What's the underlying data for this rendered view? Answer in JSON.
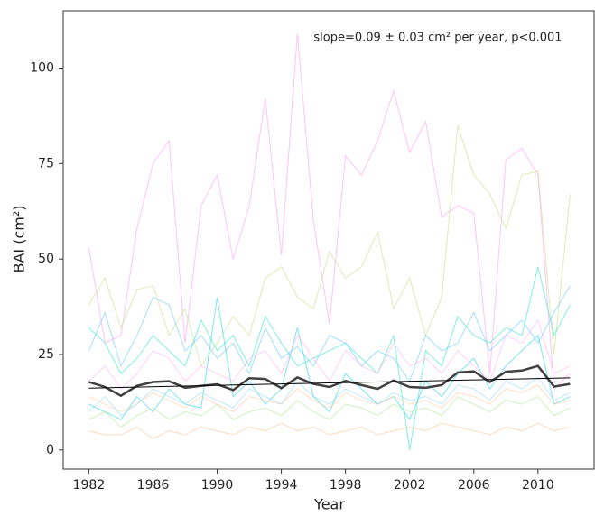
{
  "chart_data": {
    "type": "line",
    "xlabel": "Year",
    "ylabel": "BAI (cm²)",
    "annotation": "slope=0.09 ± 0.03 cm² per year, p<0.001",
    "x": [
      1982,
      1983,
      1984,
      1985,
      1986,
      1987,
      1988,
      1989,
      1990,
      1991,
      1992,
      1993,
      1994,
      1995,
      1996,
      1997,
      1998,
      1999,
      2000,
      2001,
      2002,
      2003,
      2004,
      2005,
      2006,
      2007,
      2008,
      2009,
      2010,
      2011,
      2012
    ],
    "xlim": [
      1980.4,
      2013.5
    ],
    "xticks": [
      1982,
      1986,
      1990,
      1994,
      1998,
      2002,
      2006,
      2010
    ],
    "ylim": [
      -5,
      115
    ],
    "yticks": [
      0,
      25,
      50,
      75,
      100
    ],
    "series": [
      {
        "color": "#ff9cf0",
        "values": [
          53,
          28,
          30,
          58,
          75,
          81,
          28,
          64,
          72,
          50,
          64,
          92,
          51,
          109,
          60,
          33,
          77,
          72,
          81,
          94,
          78,
          86,
          61,
          64,
          62,
          20,
          76,
          79,
          72,
          16,
          20
        ]
      },
      {
        "color": "#c8dc8c",
        "values": [
          38,
          45,
          32,
          42,
          43,
          30,
          37,
          22,
          28,
          35,
          30,
          45,
          48,
          40,
          37,
          52,
          45,
          48,
          57,
          37,
          45,
          30,
          40,
          85,
          72,
          67,
          58,
          72,
          73,
          25,
          67
        ]
      },
      {
        "color": "#2ee6c8",
        "values": [
          32,
          28,
          20,
          24,
          30,
          26,
          22,
          34,
          26,
          30,
          22,
          35,
          28,
          22,
          24,
          26,
          28,
          24,
          20,
          30,
          0,
          26,
          22,
          35,
          30,
          28,
          32,
          30,
          48,
          30,
          38
        ]
      },
      {
        "color": "#66c8ff",
        "values": [
          26,
          36,
          22,
          30,
          40,
          38,
          26,
          30,
          24,
          28,
          20,
          32,
          24,
          27,
          22,
          30,
          28,
          22,
          26,
          24,
          18,
          30,
          26,
          28,
          36,
          26,
          30,
          34,
          28,
          36,
          43
        ]
      },
      {
        "color": "#f5c896",
        "values": [
          5,
          4,
          4,
          6,
          3,
          5,
          4,
          6,
          5,
          4,
          6,
          5,
          7,
          5,
          6,
          4,
          5,
          6,
          4,
          5,
          6,
          5,
          7,
          6,
          5,
          4,
          6,
          5,
          7,
          5,
          6
        ]
      },
      {
        "color": "#2ad2e6",
        "values": [
          12,
          10,
          8,
          14,
          10,
          16,
          12,
          11,
          40,
          14,
          18,
          12,
          16,
          32,
          14,
          10,
          20,
          16,
          12,
          14,
          8,
          18,
          14,
          20,
          24,
          16,
          22,
          26,
          30,
          12,
          14
        ]
      },
      {
        "color": "#ffb4f0",
        "values": [
          18,
          22,
          16,
          20,
          26,
          24,
          18,
          22,
          20,
          18,
          24,
          26,
          20,
          30,
          24,
          18,
          26,
          22,
          20,
          28,
          22,
          24,
          20,
          26,
          22,
          18,
          30,
          28,
          34,
          20,
          22
        ]
      },
      {
        "color": "#b4e696",
        "values": [
          8,
          10,
          6,
          9,
          11,
          8,
          10,
          9,
          12,
          8,
          10,
          11,
          9,
          13,
          10,
          8,
          12,
          11,
          9,
          12,
          10,
          11,
          9,
          14,
          12,
          10,
          13,
          12,
          14,
          9,
          11
        ]
      },
      {
        "color": "#ffc8a0",
        "values": [
          14,
          12,
          10,
          12,
          15,
          13,
          11,
          14,
          12,
          10,
          14,
          13,
          12,
          16,
          13,
          11,
          15,
          13,
          12,
          14,
          12,
          13,
          11,
          15,
          14,
          12,
          16,
          15,
          17,
          12,
          13
        ]
      },
      {
        "color": "#96dcf0",
        "values": [
          10,
          14,
          9,
          12,
          16,
          14,
          12,
          15,
          13,
          11,
          16,
          14,
          12,
          18,
          14,
          12,
          16,
          14,
          12,
          15,
          13,
          14,
          12,
          17,
          16,
          13,
          18,
          16,
          19,
          13,
          15
        ]
      },
      {
        "color": "#404040",
        "values": [
          17.8,
          16.5,
          14.2,
          16.8,
          17.8,
          18.0,
          16.3,
          16.8,
          17.2,
          15.7,
          18.8,
          18.6,
          16.2,
          19.0,
          17.3,
          16.5,
          18.1,
          17.0,
          16.0,
          18.2,
          16.5,
          16.3,
          17.0,
          20.3,
          20.6,
          17.8,
          20.5,
          20.8,
          22.0,
          16.6,
          17.3
        ]
      },
      {
        "color": "#000000",
        "x": [
          1982,
          2012
        ],
        "values": [
          16.2,
          18.9
        ]
      }
    ]
  }
}
